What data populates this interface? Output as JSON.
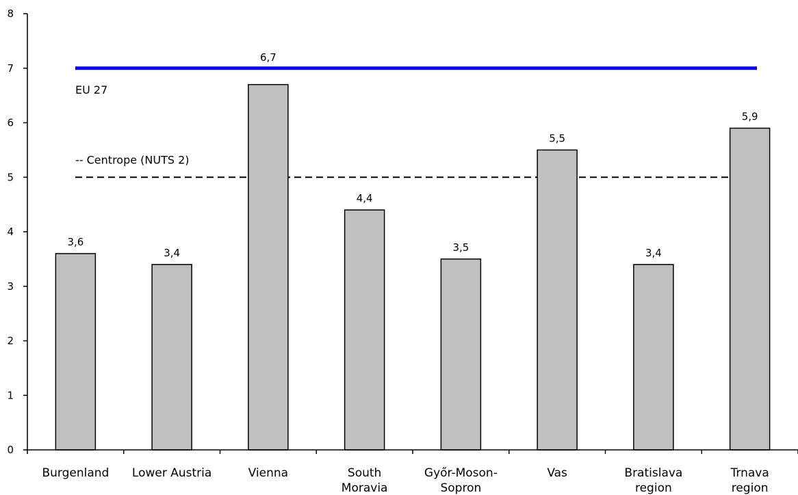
{
  "chart_data": {
    "type": "bar",
    "categories": [
      [
        "Burgenland"
      ],
      [
        "Lower Austria"
      ],
      [
        "Vienna"
      ],
      [
        "South",
        "Moravia"
      ],
      [
        "Győr-Moson-",
        "Sopron"
      ],
      [
        "Vas"
      ],
      [
        "Bratislava",
        "region"
      ],
      [
        "Trnava",
        "region"
      ]
    ],
    "values": [
      3.6,
      3.4,
      6.7,
      4.4,
      3.5,
      5.5,
      3.4,
      5.9
    ],
    "data_labels": [
      "3,6",
      "3,4",
      "",
      "4,4",
      "3,5",
      "5,5",
      "3,4",
      "5,9"
    ],
    "title": "",
    "xlabel": "",
    "ylabel": "",
    "ylim": [
      0,
      8
    ],
    "yticks": [
      0,
      1,
      2,
      3,
      4,
      5,
      6,
      7,
      8
    ],
    "grid": false,
    "bar_color": "#c0c0c0",
    "reference_lines": [
      {
        "value": 7,
        "style": "solid",
        "color": "#0000ee",
        "label": "EU 27"
      },
      {
        "value": 5,
        "style": "dashed",
        "color": "#000000",
        "label": "-- Centrope (NUTS 2)"
      }
    ],
    "annotations": [
      {
        "text": "6,7",
        "anchor_category": 2,
        "position": "above EU 27 line"
      }
    ]
  }
}
